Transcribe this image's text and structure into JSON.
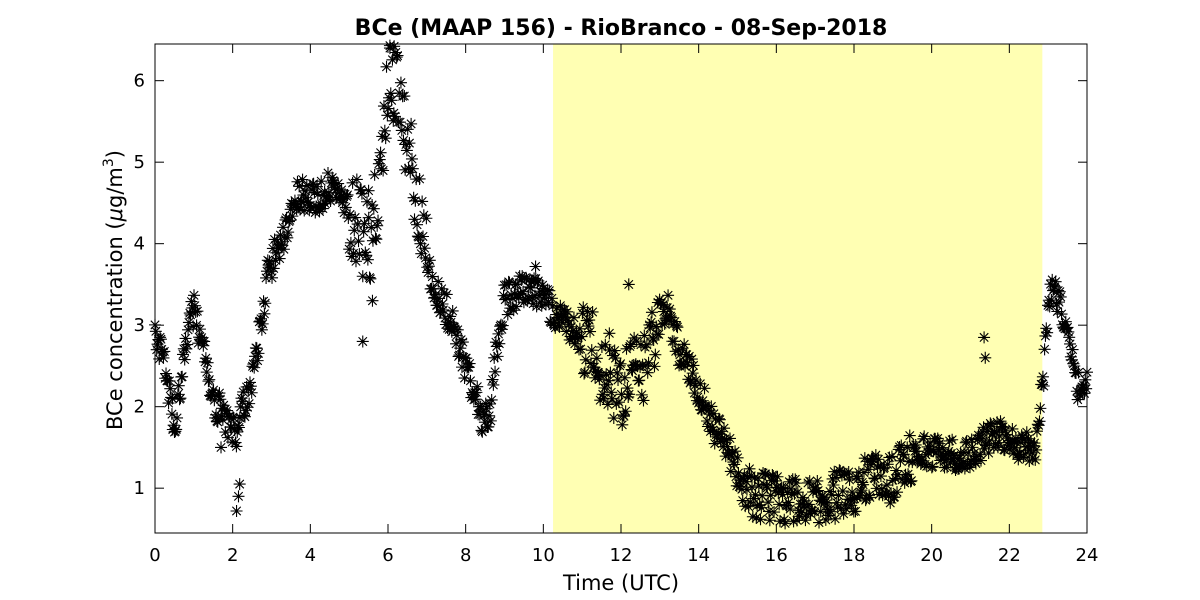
{
  "chart_data": {
    "type": "scatter",
    "title": "BCe (MAAP 156) - RioBranco - 08-Sep-2018",
    "xlabel": "Time (UTC)",
    "ylabel_main": "BCe concentration (",
    "ylabel_mu": "μ",
    "ylabel_unit": "g/m",
    "ylabel_sup": "3",
    "ylabel_end": ")",
    "xlim": [
      0,
      24
    ],
    "ylim": [
      0.45,
      6.45
    ],
    "xticks": [
      0,
      2,
      4,
      6,
      8,
      10,
      12,
      14,
      16,
      18,
      20,
      22,
      24
    ],
    "yticks": [
      1,
      2,
      3,
      4,
      5,
      6
    ],
    "marker": "asterisk",
    "marker_color": "#000000",
    "grid": false,
    "daylight_span": {
      "x0": 10.25,
      "x1": 22.85,
      "color": "#ffffb3"
    },
    "series_trend": [
      [
        0.0,
        2.9
      ],
      [
        0.15,
        2.7
      ],
      [
        0.3,
        2.4
      ],
      [
        0.5,
        1.75
      ],
      [
        0.7,
        2.4
      ],
      [
        0.85,
        3.0
      ],
      [
        1.0,
        3.2
      ],
      [
        1.15,
        2.9
      ],
      [
        1.35,
        2.5
      ],
      [
        1.5,
        2.05
      ],
      [
        1.7,
        1.95
      ],
      [
        1.9,
        1.8
      ],
      [
        2.1,
        1.7
      ],
      [
        2.3,
        2.05
      ],
      [
        2.5,
        2.35
      ],
      [
        2.7,
        2.9
      ],
      [
        2.9,
        3.6
      ],
      [
        3.1,
        3.9
      ],
      [
        3.3,
        4.1
      ],
      [
        3.5,
        4.4
      ],
      [
        3.7,
        4.6
      ],
      [
        4.0,
        4.6
      ],
      [
        4.2,
        4.55
      ],
      [
        4.5,
        4.7
      ],
      [
        4.75,
        4.55
      ],
      [
        5.0,
        4.4
      ],
      [
        5.25,
        4.2
      ],
      [
        5.5,
        4.0
      ],
      [
        5.7,
        4.4
      ],
      [
        5.85,
        5.3
      ],
      [
        6.0,
        6.1
      ],
      [
        6.2,
        5.9
      ],
      [
        6.4,
        5.4
      ],
      [
        6.6,
        5.2
      ],
      [
        6.8,
        4.3
      ],
      [
        7.0,
        3.8
      ],
      [
        7.2,
        3.4
      ],
      [
        7.5,
        3.2
      ],
      [
        7.8,
        2.8
      ],
      [
        8.0,
        2.5
      ],
      [
        8.2,
        2.2
      ],
      [
        8.4,
        1.9
      ],
      [
        8.6,
        1.8
      ],
      [
        8.8,
        2.7
      ],
      [
        9.0,
        3.3
      ],
      [
        9.3,
        3.4
      ],
      [
        9.6,
        3.5
      ],
      [
        9.9,
        3.4
      ],
      [
        10.2,
        3.2
      ],
      [
        10.5,
        3.1
      ],
      [
        10.8,
        2.95
      ],
      [
        11.0,
        2.85
      ],
      [
        11.3,
        2.7
      ],
      [
        11.6,
        2.35
      ],
      [
        12.0,
        2.2
      ],
      [
        12.3,
        2.4
      ],
      [
        12.6,
        2.5
      ],
      [
        12.9,
        3.0
      ],
      [
        13.2,
        3.2
      ],
      [
        13.5,
        2.7
      ],
      [
        13.8,
        2.45
      ],
      [
        14.1,
        2.1
      ],
      [
        14.4,
        1.75
      ],
      [
        14.7,
        1.55
      ],
      [
        15.0,
        1.2
      ],
      [
        15.3,
        0.95
      ],
      [
        15.6,
        0.9
      ],
      [
        16.0,
        0.9
      ],
      [
        16.3,
        0.85
      ],
      [
        16.6,
        0.8
      ],
      [
        17.0,
        0.8
      ],
      [
        17.3,
        0.85
      ],
      [
        17.6,
        0.95
      ],
      [
        18.0,
        1.0
      ],
      [
        18.3,
        1.1
      ],
      [
        18.6,
        1.15
      ],
      [
        18.9,
        1.1
      ],
      [
        19.2,
        1.25
      ],
      [
        19.5,
        1.4
      ],
      [
        19.8,
        1.45
      ],
      [
        20.2,
        1.45
      ],
      [
        20.6,
        1.4
      ],
      [
        21.0,
        1.4
      ],
      [
        21.3,
        1.55
      ],
      [
        21.6,
        1.65
      ],
      [
        22.0,
        1.6
      ],
      [
        22.4,
        1.5
      ],
      [
        22.7,
        1.55
      ],
      [
        22.9,
        2.5
      ],
      [
        23.05,
        3.5
      ],
      [
        23.3,
        3.3
      ],
      [
        23.6,
        2.6
      ],
      [
        23.85,
        2.1
      ],
      [
        24.0,
        2.45
      ]
    ],
    "series_outliers": [
      [
        2.1,
        0.72
      ],
      [
        2.15,
        0.9
      ],
      [
        2.18,
        1.05
      ],
      [
        5.5,
        4.65
      ],
      [
        5.6,
        3.3
      ],
      [
        5.35,
        2.8
      ],
      [
        6.05,
        6.4
      ],
      [
        6.15,
        5.6
      ],
      [
        21.35,
        2.85
      ],
      [
        21.38,
        2.6
      ],
      [
        0.45,
        2.1
      ],
      [
        1.7,
        1.5
      ],
      [
        11.7,
        2.9
      ],
      [
        12.2,
        3.5
      ],
      [
        9.8,
        3.72
      ]
    ]
  }
}
